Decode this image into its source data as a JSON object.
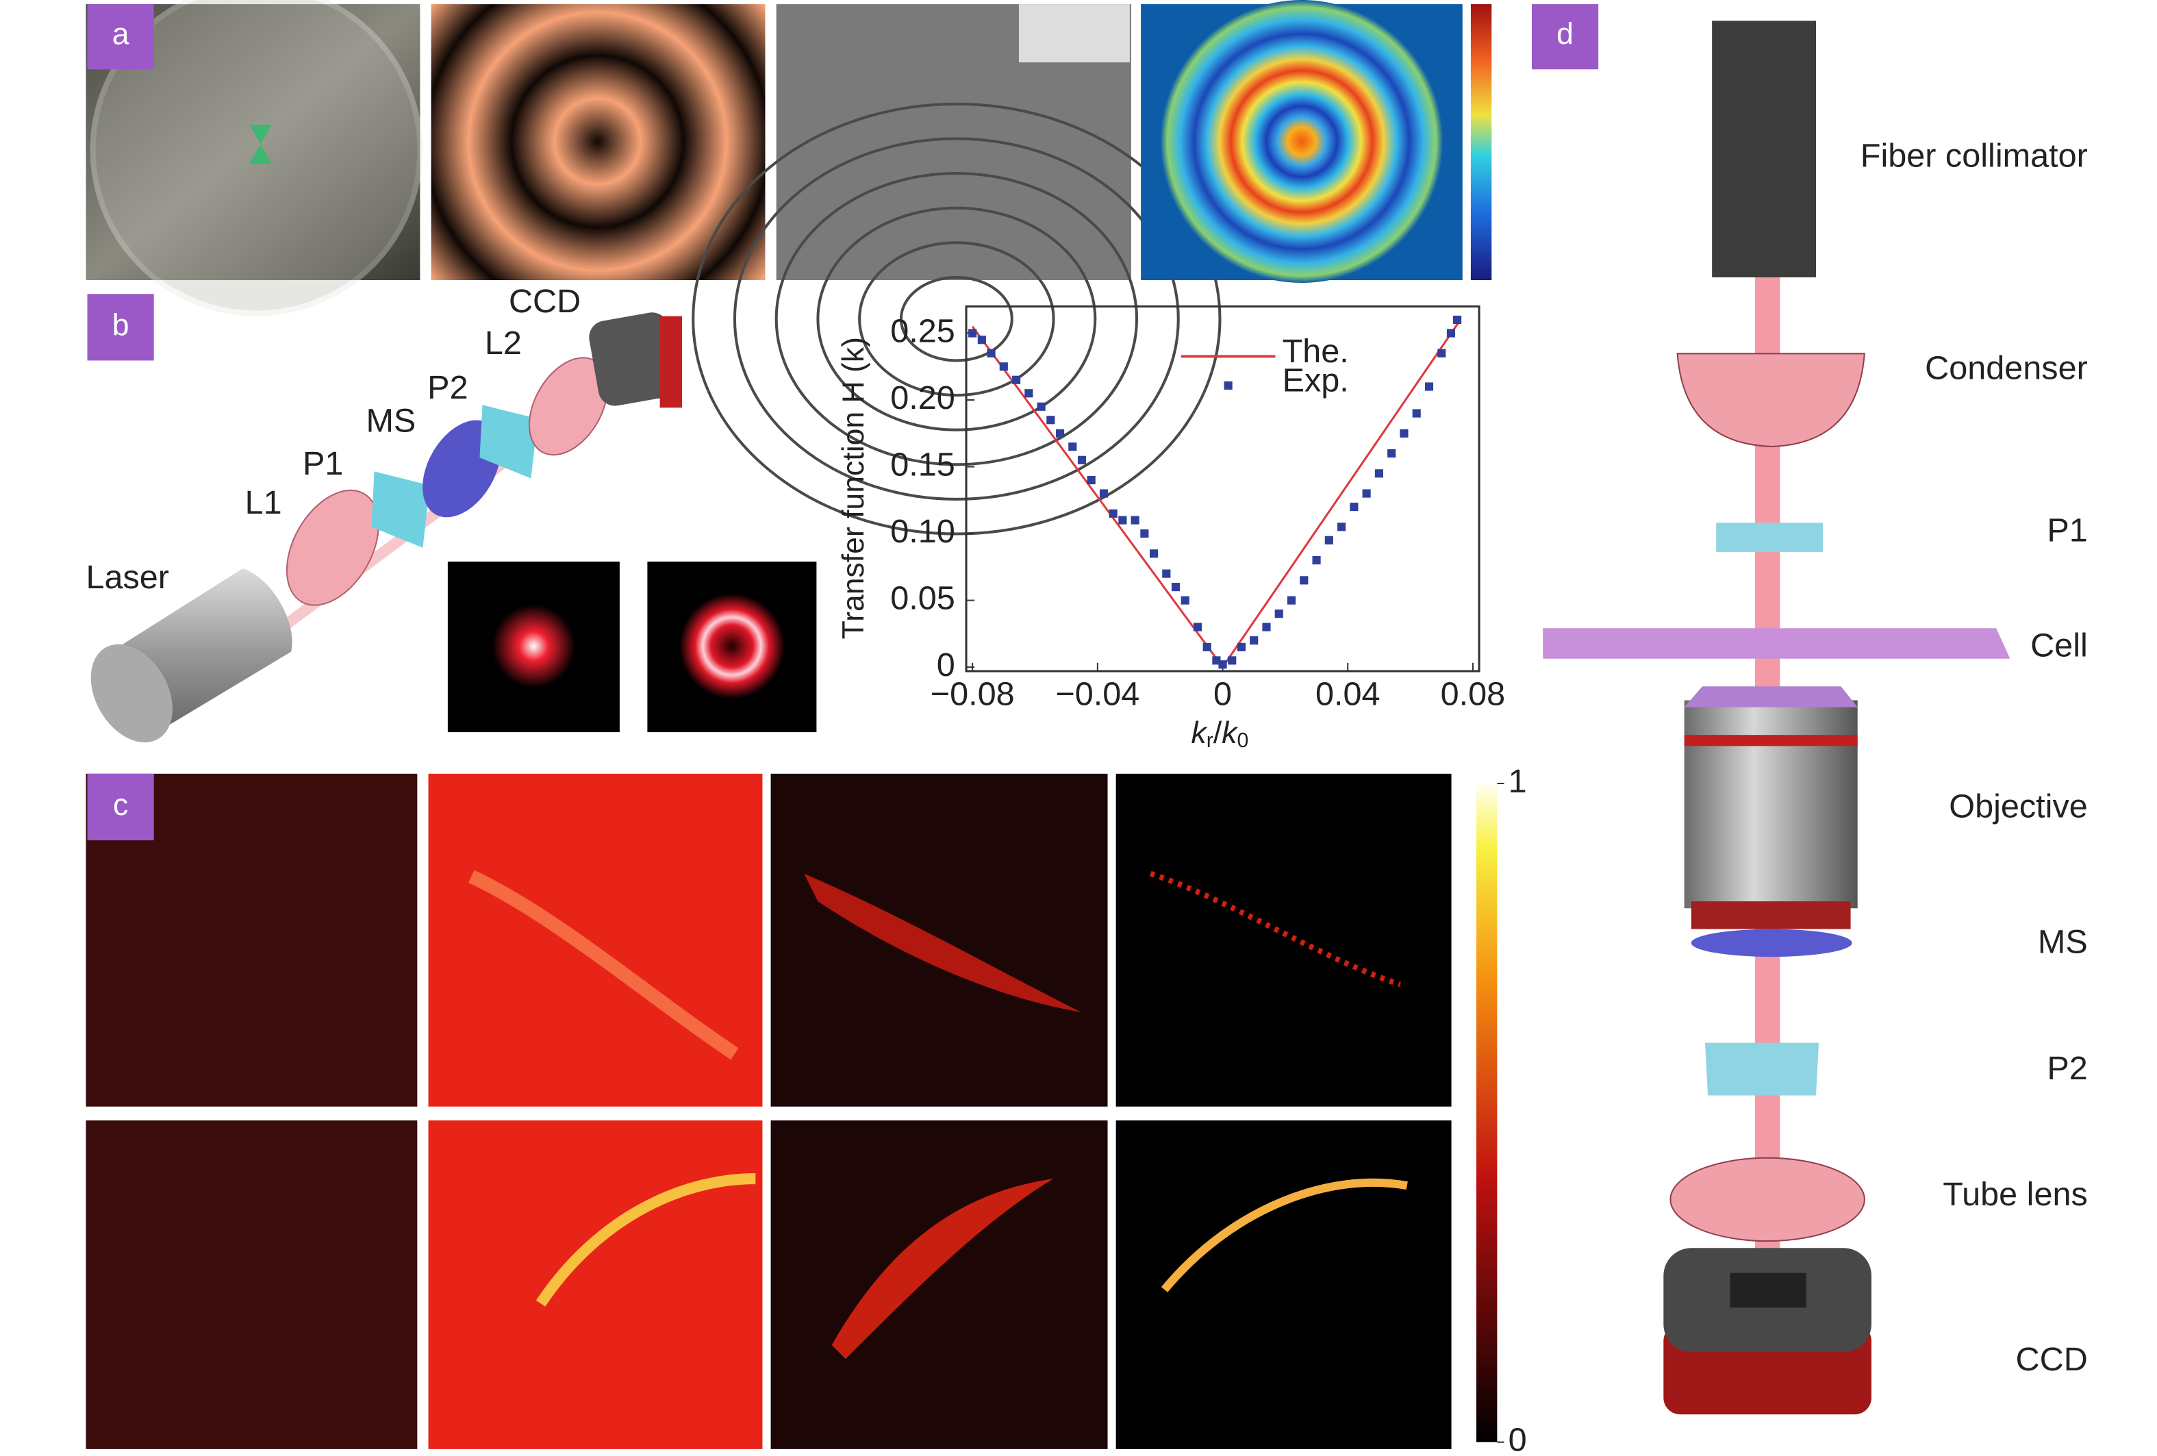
{
  "panel_labels": [
    "a",
    "b",
    "c",
    "d"
  ],
  "setup_b": {
    "labels": [
      "Laser",
      "L1",
      "P1",
      "MS",
      "P2",
      "L2",
      "CCD"
    ]
  },
  "setup_d": {
    "labels": [
      "Fiber collimator",
      "Condenser",
      "P1",
      "Cell",
      "Objective",
      "MS",
      "P2",
      "Tube lens",
      "CCD"
    ]
  },
  "colorbar_c": {
    "ticks": [
      0,
      1
    ]
  },
  "chart_data": {
    "type": "scatter",
    "ylabel": "Transfer function H (k)",
    "xlabel": [
      "k",
      "r",
      "/",
      "k",
      "0"
    ],
    "xlim": [
      -0.082,
      0.082
    ],
    "ylim": [
      -0.003,
      0.27
    ],
    "xticks": [
      {
        "value": -0.08,
        "label": "−0.08"
      },
      {
        "value": -0.04,
        "label": "−0.04"
      },
      0,
      0.04,
      0.08
    ],
    "yticks": [
      0,
      0.05,
      {
        "value": 0.1,
        "label": "0.10"
      },
      0.15,
      {
        "value": 0.2,
        "label": "0.20"
      },
      0.25
    ],
    "legend": "upper right",
    "series": [
      {
        "name": "The.",
        "color": "#e0393e",
        "mode": "line",
        "x": [
          -0.08,
          0,
          0.076
        ],
        "values": [
          0.255,
          0,
          0.26
        ]
      },
      {
        "name": "Exp.",
        "color": "#2f3f9c",
        "mode": "markers",
        "x": [
          -0.08,
          -0.077,
          -0.074,
          -0.07,
          -0.066,
          -0.062,
          -0.058,
          -0.055,
          -0.052,
          -0.048,
          -0.045,
          -0.042,
          -0.038,
          -0.035,
          -0.032,
          -0.028,
          -0.025,
          -0.022,
          -0.018,
          -0.015,
          -0.012,
          -0.008,
          -0.005,
          -0.002,
          0,
          0.003,
          0.006,
          0.01,
          0.014,
          0.018,
          0.022,
          0.026,
          0.03,
          0.034,
          0.038,
          0.042,
          0.046,
          0.05,
          0.054,
          0.058,
          0.062,
          0.066,
          0.07,
          0.073,
          0.075
        ],
        "values": [
          0.25,
          0.245,
          0.235,
          0.225,
          0.215,
          0.205,
          0.195,
          0.185,
          0.175,
          0.165,
          0.155,
          0.14,
          0.13,
          0.115,
          0.11,
          0.11,
          0.1,
          0.085,
          0.07,
          0.06,
          0.05,
          0.03,
          0.015,
          0.005,
          0.002,
          0.005,
          0.015,
          0.02,
          0.03,
          0.04,
          0.05,
          0.065,
          0.08,
          0.095,
          0.105,
          0.12,
          0.13,
          0.145,
          0.16,
          0.175,
          0.19,
          0.21,
          0.235,
          0.25,
          0.26
        ]
      }
    ]
  }
}
